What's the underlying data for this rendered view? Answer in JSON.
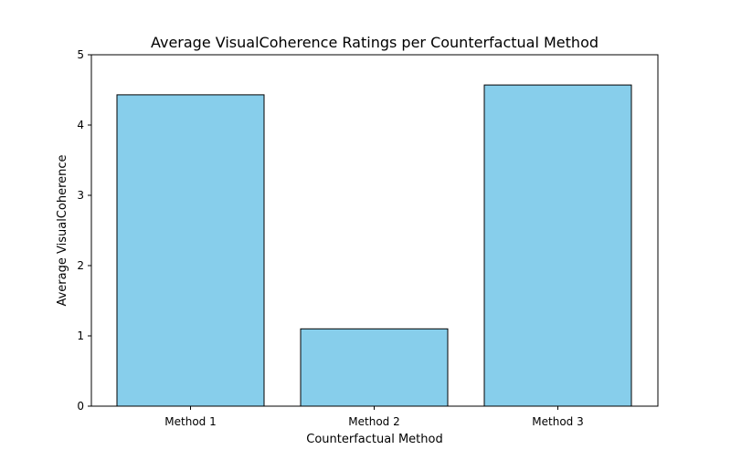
{
  "chart_data": {
    "type": "bar",
    "title": "Average VisualCoherence Ratings per Counterfactual Method",
    "xlabel": "Counterfactual Method",
    "ylabel": "Average VisualCoherence",
    "categories": [
      "Method 1",
      "Method 2",
      "Method 3"
    ],
    "values": [
      4.43,
      1.1,
      4.57
    ],
    "ylim": [
      0,
      5
    ],
    "yticks": [
      0,
      1,
      2,
      3,
      4,
      5
    ],
    "bar_color": "#87CEEB",
    "bar_edge_color": "#000000",
    "grid": false,
    "legend": "none"
  }
}
